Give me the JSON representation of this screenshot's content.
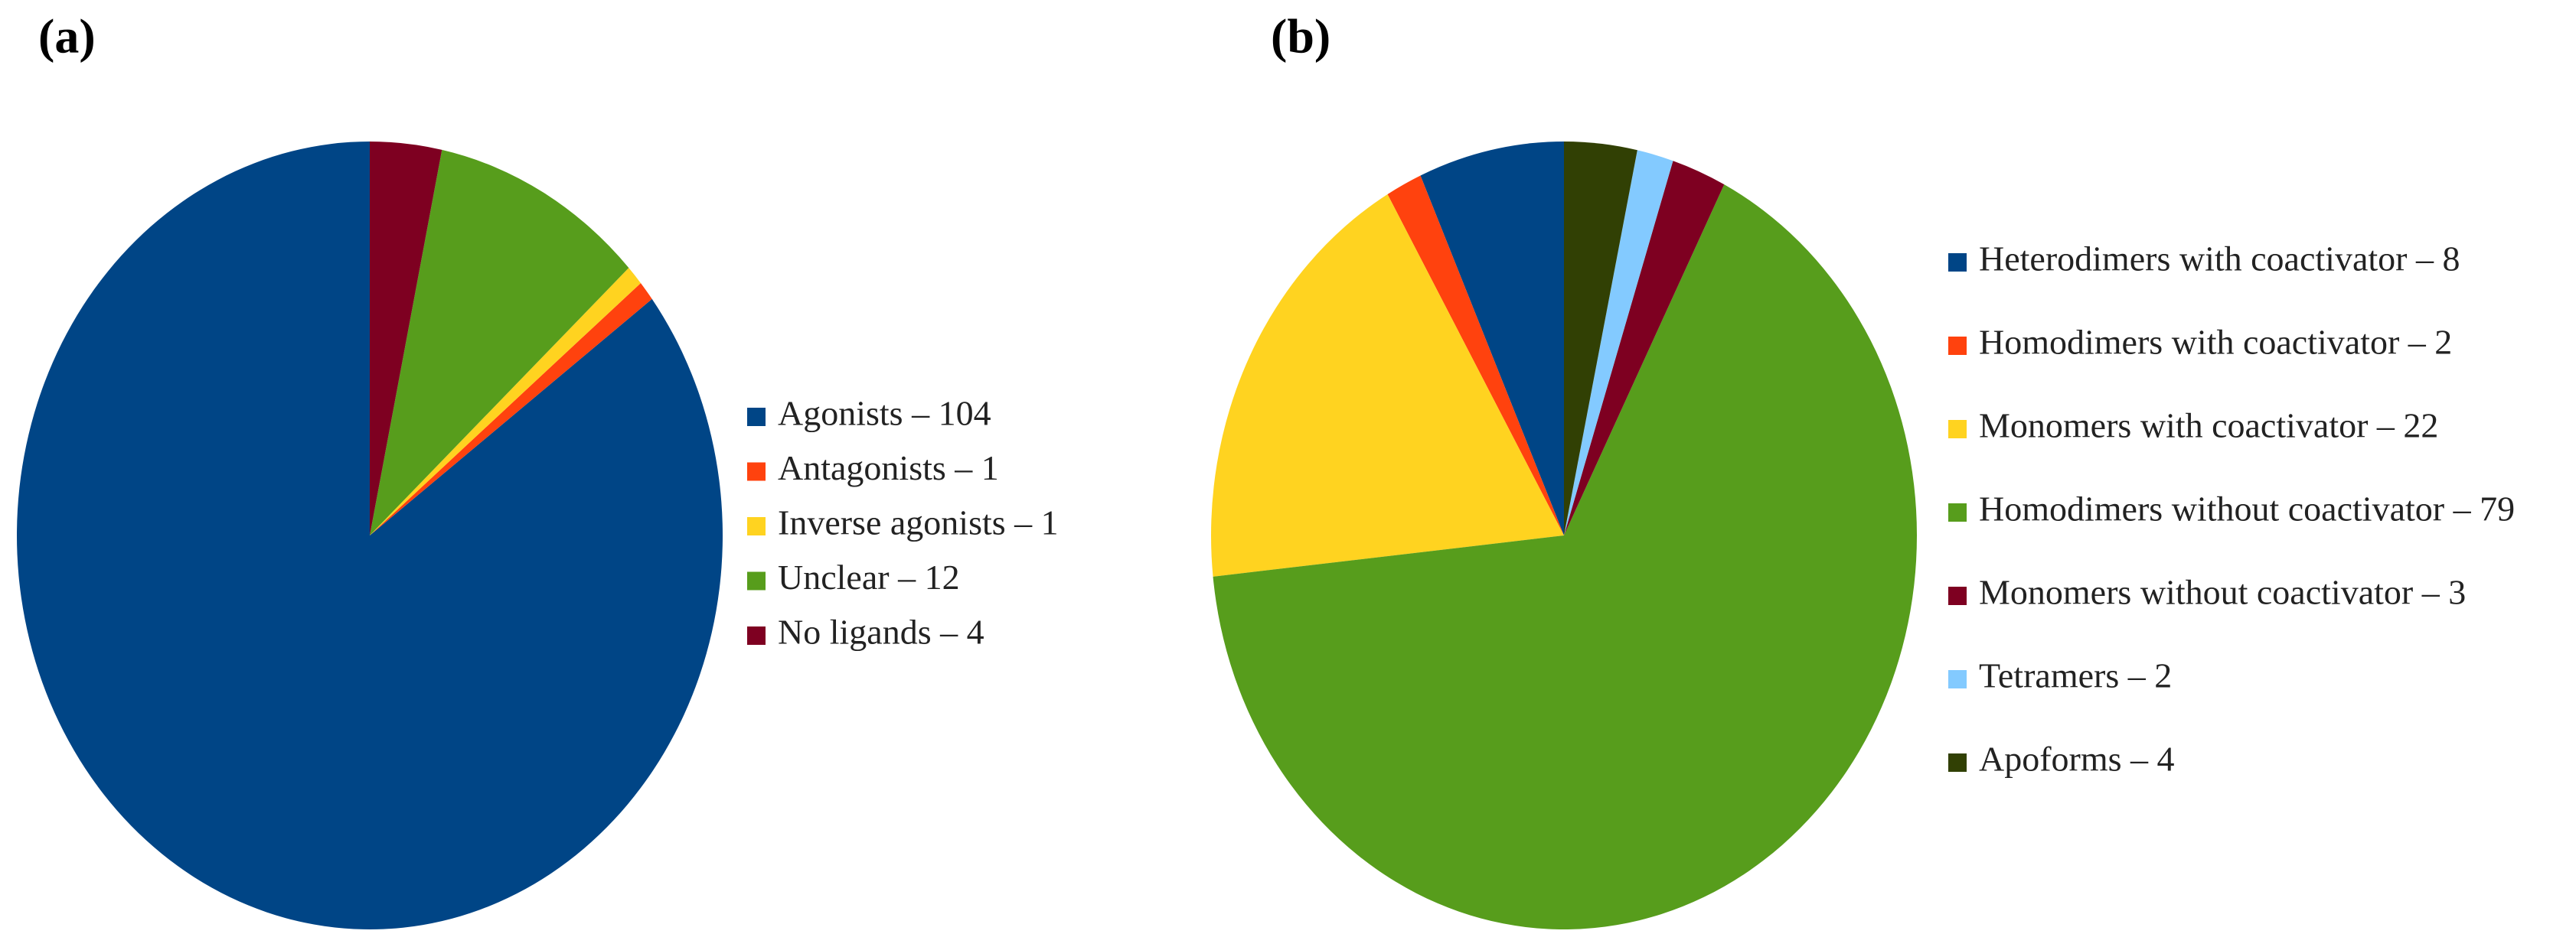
{
  "chart_data": [
    {
      "type": "pie",
      "title": "(a)",
      "categories": [
        "Agonists – 104",
        "Antagonists – 1",
        "Inverse agonists – 1",
        "Unclear – 12",
        "No ligands – 4"
      ],
      "values": [
        104,
        1,
        1,
        12,
        4
      ],
      "colors": [
        "#004586",
        "#ff420e",
        "#ffd320",
        "#579d1c",
        "#7e0021"
      ]
    },
    {
      "type": "pie",
      "title": "(b)",
      "categories": [
        "Heterodimers with coactivator – 8",
        "Homodimers with coactivator – 2",
        "Monomers with coactivator – 22",
        "Homodimers without coactivator – 79",
        "Monomers without coactivator – 3",
        "Tetramers – 2",
        "Apoforms – 4"
      ],
      "values": [
        8,
        2,
        22,
        79,
        3,
        2,
        4
      ],
      "colors": [
        "#004586",
        "#ff420e",
        "#ffd320",
        "#579d1c",
        "#7e0021",
        "#83caff",
        "#314004"
      ]
    }
  ]
}
